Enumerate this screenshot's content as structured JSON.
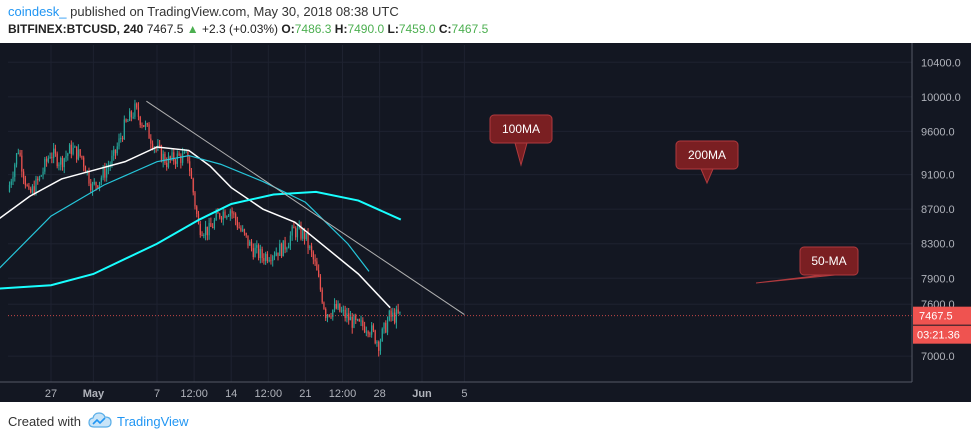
{
  "header": {
    "author": "coindesk_",
    "published": "published on TradingView.com, May 30, 2018 08:38 UTC",
    "symbol": "BITFINEX:BTCUSD, 240",
    "last": "7467.5",
    "change_arrow": "▲",
    "change": "+2.3 (+0.03%)",
    "o_label": "O:",
    "o": "7486.3",
    "h_label": "H:",
    "h": "7490.0",
    "l_label": "L:",
    "l": "7459.0",
    "c_label": "C:",
    "c": "7467.5"
  },
  "footer": {
    "created_with": "Created with",
    "brand": "TradingView"
  },
  "colors": {
    "background": "#131722",
    "up": "#26a69a",
    "down": "#ef5350",
    "ma50": "#ffffff",
    "ma100": "#26c6da",
    "ma200": "#18ffff",
    "trendline": "#b0b0b0",
    "callout": "#7a1f22"
  },
  "chart_data": {
    "type": "candlestick",
    "title": "BITFINEX:BTCUSD, 240",
    "ylim": [
      6700,
      10600
    ],
    "y_ticks": [
      "10400.0",
      "10000.0",
      "9600.0",
      "9100.0",
      "8700.0",
      "8300.0",
      "7900.0",
      "7600.0",
      "7000.0"
    ],
    "x_ticks": [
      "27",
      "May",
      "7",
      "12:00",
      "14",
      "12:00",
      "21",
      "12:00",
      "28",
      "Jun",
      "5"
    ],
    "last_price_label": "7467.5",
    "countdown_label": "03:21.36",
    "annotations": [
      "100MA",
      "200MA",
      "50-MA"
    ],
    "close_anchors": [
      {
        "date": "Apr 23",
        "close": 8900
      },
      {
        "date": "Apr 24",
        "close": 9400
      },
      {
        "date": "Apr 25",
        "close": 8850
      },
      {
        "date": "Apr 26",
        "close": 9050
      },
      {
        "date": "Apr 27",
        "close": 9350
      },
      {
        "date": "Apr 28",
        "close": 9250
      },
      {
        "date": "Apr 29",
        "close": 9400
      },
      {
        "date": "Apr 30",
        "close": 9300
      },
      {
        "date": "May 1",
        "close": 8950
      },
      {
        "date": "May 2",
        "close": 9100
      },
      {
        "date": "May 3",
        "close": 9300
      },
      {
        "date": "May 4",
        "close": 9650
      },
      {
        "date": "May 5",
        "close": 9850
      },
      {
        "date": "May 6",
        "close": 9650
      },
      {
        "date": "May 7",
        "close": 9400
      },
      {
        "date": "May 8",
        "close": 9250
      },
      {
        "date": "May 9",
        "close": 9300
      },
      {
        "date": "May 10",
        "close": 9300
      },
      {
        "date": "May 11",
        "close": 8500
      },
      {
        "date": "May 12",
        "close": 8450
      },
      {
        "date": "May 13",
        "close": 8650
      },
      {
        "date": "May 14",
        "close": 8700
      },
      {
        "date": "May 15",
        "close": 8450
      },
      {
        "date": "May 16",
        "close": 8250
      },
      {
        "date": "May 17",
        "close": 8150
      },
      {
        "date": "May 18",
        "close": 8200
      },
      {
        "date": "May 19",
        "close": 8250
      },
      {
        "date": "May 20",
        "close": 8450
      },
      {
        "date": "May 21",
        "close": 8400
      },
      {
        "date": "May 22",
        "close": 8050
      },
      {
        "date": "May 23",
        "close": 7500
      },
      {
        "date": "May 24",
        "close": 7550
      },
      {
        "date": "May 25",
        "close": 7450
      },
      {
        "date": "May 26",
        "close": 7350
      },
      {
        "date": "May 27",
        "close": 7350
      },
      {
        "date": "May 28",
        "close": 7150
      },
      {
        "date": "May 29",
        "close": 7450
      },
      {
        "date": "May 30",
        "close": 7467.5
      }
    ],
    "series": [
      {
        "name": "50-MA",
        "points": [
          {
            "date": "Apr 22",
            "value": 8580
          },
          {
            "date": "Apr 25",
            "value": 8850
          },
          {
            "date": "Apr 28",
            "value": 9050
          },
          {
            "date": "May 1",
            "value": 9150
          },
          {
            "date": "May 4",
            "value": 9250
          },
          {
            "date": "May 7",
            "value": 9420
          },
          {
            "date": "May 10",
            "value": 9380
          },
          {
            "date": "May 12",
            "value": 9200
          },
          {
            "date": "May 14",
            "value": 8950
          },
          {
            "date": "May 17",
            "value": 8700
          },
          {
            "date": "May 20",
            "value": 8550
          },
          {
            "date": "May 23",
            "value": 8250
          },
          {
            "date": "May 26",
            "value": 7950
          },
          {
            "date": "May 29",
            "value": 7560
          }
        ]
      },
      {
        "name": "100MA",
        "points": [
          {
            "date": "Apr 22",
            "value": 8000
          },
          {
            "date": "Apr 27",
            "value": 8620
          },
          {
            "date": "May 2",
            "value": 8980
          },
          {
            "date": "May 7",
            "value": 9250
          },
          {
            "date": "May 10",
            "value": 9320
          },
          {
            "date": "May 13",
            "value": 9220
          },
          {
            "date": "May 17",
            "value": 9020
          },
          {
            "date": "May 21",
            "value": 8780
          },
          {
            "date": "May 25",
            "value": 8300
          },
          {
            "date": "May 27",
            "value": 7980
          }
        ]
      },
      {
        "name": "200MA",
        "points": [
          {
            "date": "Apr 22",
            "value": 7780
          },
          {
            "date": "Apr 27",
            "value": 7820
          },
          {
            "date": "May 1",
            "value": 7950
          },
          {
            "date": "May 7",
            "value": 8300
          },
          {
            "date": "May 11",
            "value": 8580
          },
          {
            "date": "May 14",
            "value": 8760
          },
          {
            "date": "May 18",
            "value": 8870
          },
          {
            "date": "May 22",
            "value": 8900
          },
          {
            "date": "May 26",
            "value": 8800
          },
          {
            "date": "May 30",
            "value": 8580
          }
        ]
      }
    ],
    "trendline": [
      {
        "date": "May 6",
        "value": 9950
      },
      {
        "date": "Jun 5",
        "value": 7480
      }
    ]
  }
}
